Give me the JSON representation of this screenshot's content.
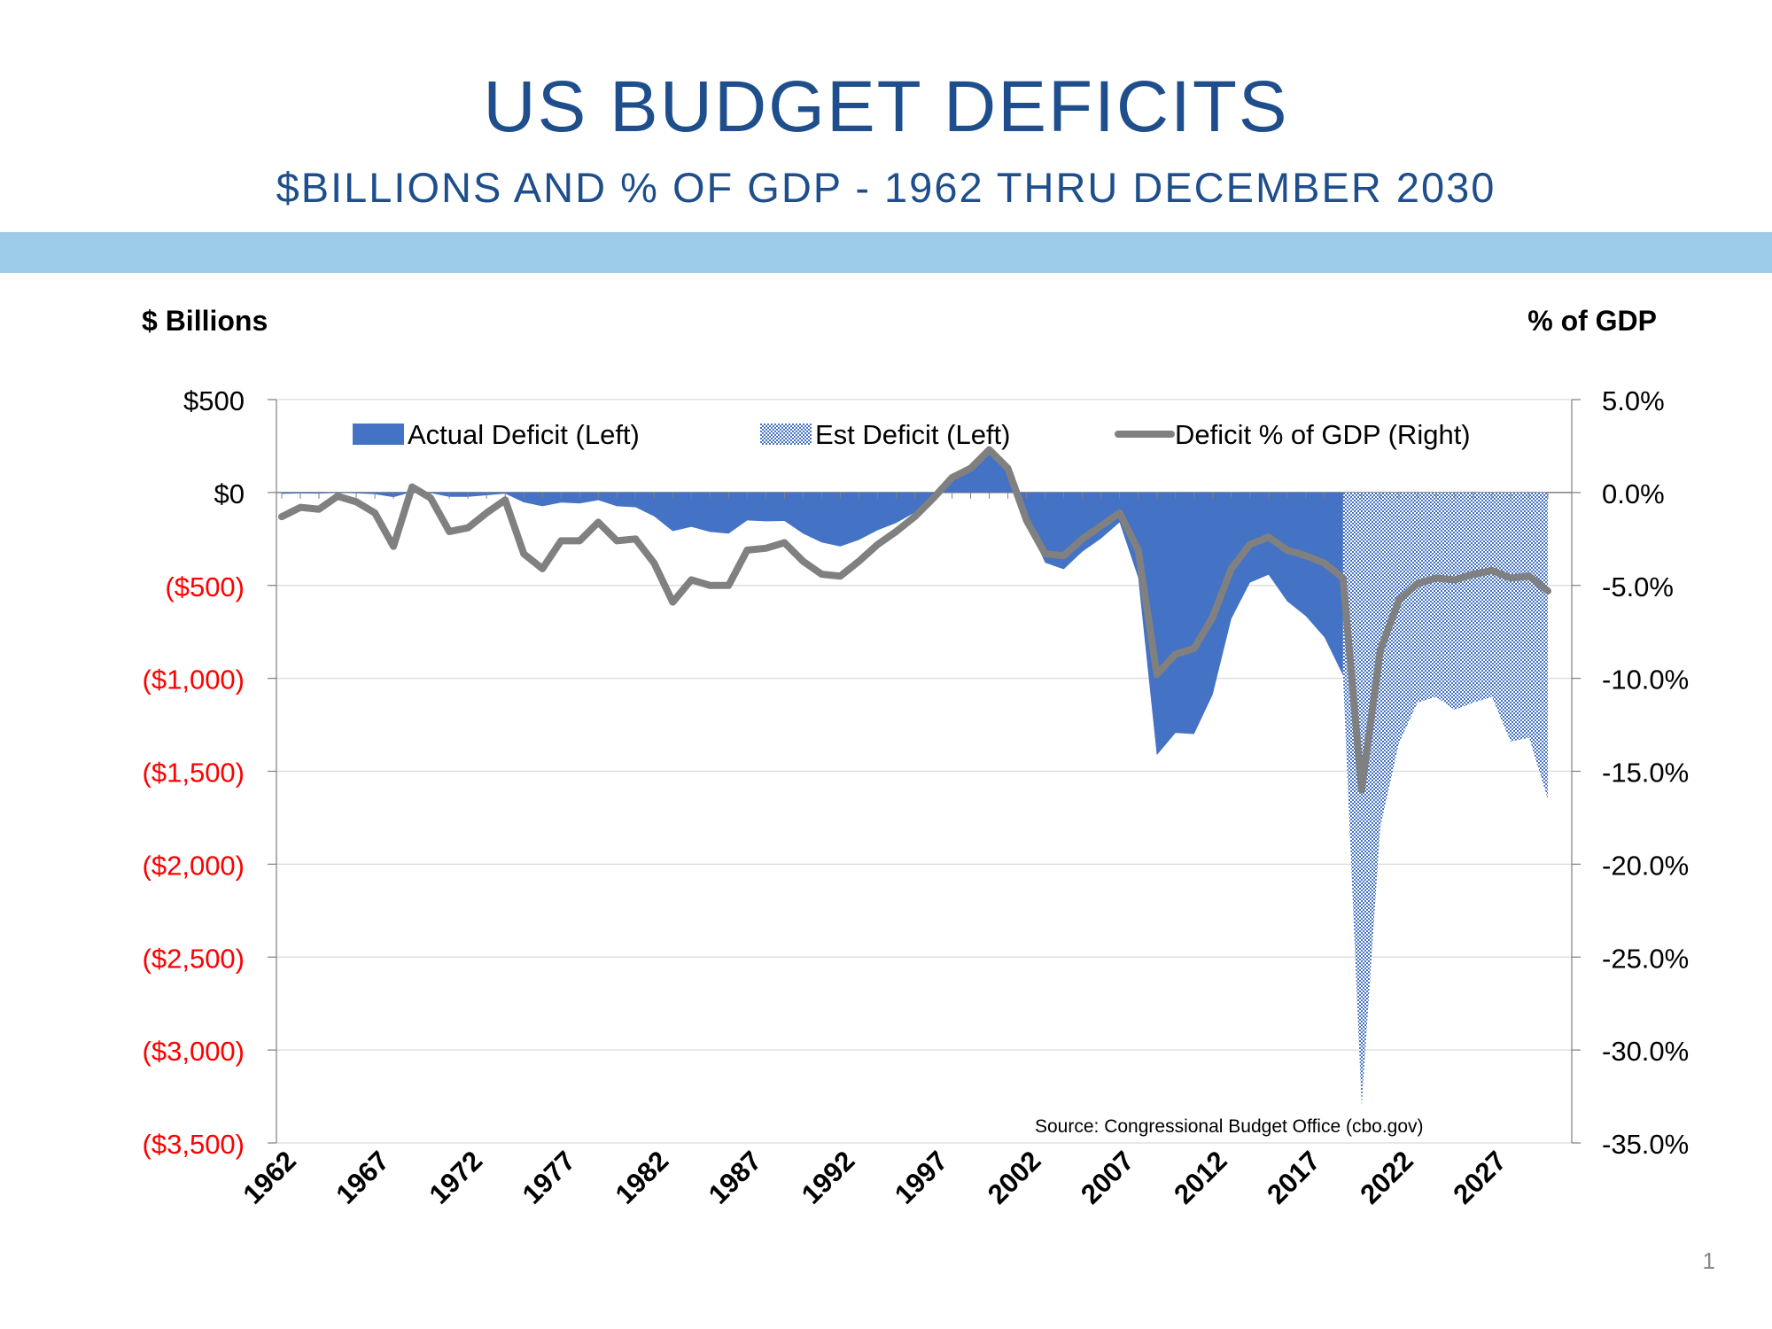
{
  "header": {
    "title": "US BUDGET DEFICITS",
    "subtitle": "$BILLIONS AND % OF GDP - 1962 THRU DECEMBER 2030"
  },
  "axes_titles": {
    "left": "$ Billions",
    "right": "% of GDP"
  },
  "page_number": "1",
  "colors": {
    "actual": "#4472c4",
    "estimate": "#4472c4",
    "line": "#808080",
    "negative_label": "#ff0000",
    "title": "#1f4e8c",
    "band": "#9dcbea"
  },
  "chart_data": {
    "type": "area",
    "source": "Source:  Congressional Budget Office (cbo.gov)",
    "y_left": {
      "ylim": [
        -3500,
        500
      ],
      "ticks": [
        500,
        0,
        -500,
        -1000,
        -1500,
        -2000,
        -2500,
        -3000,
        -3500
      ],
      "tick_labels": [
        "$500",
        "$0",
        "($500)",
        "($1,000)",
        "($1,500)",
        "($2,000)",
        "($2,500)",
        "($3,000)",
        "($3,500)"
      ]
    },
    "y_right": {
      "ylim": [
        -35,
        5
      ],
      "tick_labels": [
        "5.0%",
        "0.0%",
        "-5.0%",
        "-10.0%",
        "-15.0%",
        "-20.0%",
        "-25.0%",
        "-30.0%",
        "-35.0%"
      ]
    },
    "x_tick_labels": [
      "1962",
      "1967",
      "1972",
      "1977",
      "1982",
      "1987",
      "1992",
      "1997",
      "2002",
      "2007",
      "2012",
      "2017",
      "2022",
      "2027"
    ],
    "legend_position": "top",
    "series": [
      {
        "name": "Actual Deficit (Left)",
        "kind": "area",
        "x": [
          1962,
          1963,
          1964,
          1965,
          1966,
          1967,
          1968,
          1969,
          1970,
          1971,
          1972,
          1973,
          1974,
          1975,
          1976,
          1977,
          1978,
          1979,
          1980,
          1981,
          1982,
          1983,
          1984,
          1985,
          1986,
          1987,
          1988,
          1989,
          1990,
          1991,
          1992,
          1993,
          1994,
          1995,
          1996,
          1997,
          1998,
          1999,
          2000,
          2001,
          2002,
          2003,
          2004,
          2005,
          2006,
          2007,
          2008,
          2009,
          2010,
          2011,
          2012,
          2013,
          2014,
          2015,
          2016,
          2017,
          2018,
          2019
        ],
        "values": [
          -7,
          -5,
          -6,
          -1,
          -4,
          -9,
          -25,
          3,
          -3,
          -23,
          -23,
          -15,
          -6,
          -53,
          -74,
          -54,
          -59,
          -41,
          -74,
          -79,
          -128,
          -208,
          -185,
          -212,
          -221,
          -150,
          -155,
          -153,
          -221,
          -269,
          -290,
          -255,
          -203,
          -164,
          -107,
          -22,
          69,
          126,
          236,
          128,
          -158,
          -378,
          -413,
          -318,
          -248,
          -161,
          -459,
          -1413,
          -1294,
          -1300,
          -1087,
          -680,
          -485,
          -442,
          -585,
          -665,
          -779,
          -984
        ]
      },
      {
        "name": "Est Deficit (Left)",
        "kind": "area-dotted",
        "x": [
          2019,
          2020,
          2021,
          2022,
          2023,
          2024,
          2025,
          2026,
          2027,
          2028,
          2029,
          2030
        ],
        "values": [
          -984,
          -3300,
          -1800,
          -1350,
          -1130,
          -1100,
          -1170,
          -1130,
          -1100,
          -1340,
          -1320,
          -1650
        ]
      },
      {
        "name": "Deficit % of GDP (Right)",
        "kind": "line",
        "x": [
          1962,
          1963,
          1964,
          1965,
          1966,
          1967,
          1968,
          1969,
          1970,
          1971,
          1972,
          1973,
          1974,
          1975,
          1976,
          1977,
          1978,
          1979,
          1980,
          1981,
          1982,
          1983,
          1984,
          1985,
          1986,
          1987,
          1988,
          1989,
          1990,
          1991,
          1992,
          1993,
          1994,
          1995,
          1996,
          1997,
          1998,
          1999,
          2000,
          2001,
          2002,
          2003,
          2004,
          2005,
          2006,
          2007,
          2008,
          2009,
          2010,
          2011,
          2012,
          2013,
          2014,
          2015,
          2016,
          2017,
          2018,
          2019,
          2020,
          2021,
          2022,
          2023,
          2024,
          2025,
          2026,
          2027,
          2028,
          2029,
          2030
        ],
        "values": [
          -1.3,
          -0.8,
          -0.9,
          -0.2,
          -0.5,
          -1.1,
          -2.9,
          0.3,
          -0.3,
          -2.1,
          -1.9,
          -1.1,
          -0.4,
          -3.3,
          -4.1,
          -2.6,
          -2.6,
          -1.6,
          -2.6,
          -2.5,
          -3.8,
          -5.9,
          -4.7,
          -5.0,
          -5.0,
          -3.1,
          -3.0,
          -2.7,
          -3.7,
          -4.4,
          -4.5,
          -3.7,
          -2.8,
          -2.1,
          -1.3,
          -0.3,
          0.8,
          1.3,
          2.3,
          1.3,
          -1.5,
          -3.3,
          -3.4,
          -2.5,
          -1.8,
          -1.1,
          -3.1,
          -9.8,
          -8.7,
          -8.4,
          -6.7,
          -4.1,
          -2.8,
          -2.4,
          -3.1,
          -3.4,
          -3.8,
          -4.6,
          -16.0,
          -8.5,
          -5.8,
          -4.9,
          -4.6,
          -4.7,
          -4.4,
          -4.2,
          -4.6,
          -4.5,
          -5.3
        ]
      }
    ]
  }
}
